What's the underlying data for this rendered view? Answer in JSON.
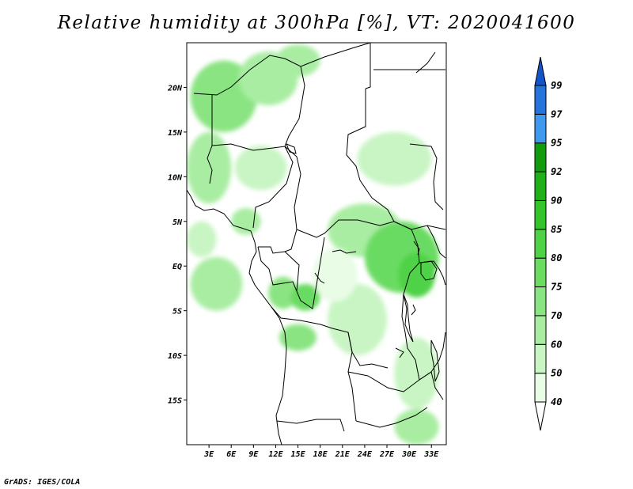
{
  "title": "Relative humidity at 300hPa [%], VT: 2020041600",
  "credit": "GrADS: IGES/COLA",
  "map": {
    "region": "Central Africa",
    "lon_range": [
      0,
      35
    ],
    "lat_range": [
      -20,
      25
    ],
    "x_ticks": [
      {
        "lon": 3,
        "label": "3E"
      },
      {
        "lon": 6,
        "label": "6E"
      },
      {
        "lon": 9,
        "label": "9E"
      },
      {
        "lon": 12,
        "label": "12E"
      },
      {
        "lon": 15,
        "label": "15E"
      },
      {
        "lon": 18,
        "label": "18E"
      },
      {
        "lon": 21,
        "label": "21E"
      },
      {
        "lon": 24,
        "label": "24E"
      },
      {
        "lon": 27,
        "label": "27E"
      },
      {
        "lon": 30,
        "label": "30E"
      },
      {
        "lon": 33,
        "label": "33E"
      }
    ],
    "y_ticks": [
      {
        "lat": 20,
        "label": "20N"
      },
      {
        "lat": 15,
        "label": "15N"
      },
      {
        "lat": 10,
        "label": "10N"
      },
      {
        "lat": 5,
        "label": "5N"
      },
      {
        "lat": 0,
        "label": "EQ"
      },
      {
        "lat": -5,
        "label": "5S"
      },
      {
        "lat": -10,
        "label": "10S"
      },
      {
        "lat": -15,
        "label": "15S"
      }
    ]
  },
  "chart_data": {
    "type": "heatmap",
    "title": "Relative humidity at 300hPa [%], VT: 2020041600",
    "xlabel": "",
    "ylabel": "",
    "x_range": [
      0,
      35
    ],
    "y_range": [
      -20,
      25
    ],
    "colorbar": {
      "levels": [
        "40",
        "50",
        "60",
        "70",
        "75",
        "80",
        "85",
        "90",
        "92",
        "95",
        "97",
        "99"
      ],
      "colors": [
        "#e8fce6",
        "#c8f5c3",
        "#a9eda2",
        "#8ae482",
        "#6bdb62",
        "#4fd246",
        "#33c52b",
        "#20b01a",
        "#119b0d",
        "#3f9aef",
        "#2573dd",
        "#1155c8"
      ],
      "below_color": "#ffffff",
      "above_color": "#1155c8"
    },
    "regions": [
      {
        "lon": 5,
        "lat": 19,
        "rx": 4.5,
        "ry": 4,
        "level": "70"
      },
      {
        "lon": 11,
        "lat": 21,
        "rx": 4,
        "ry": 3,
        "level": "60"
      },
      {
        "lon": 15,
        "lat": 23,
        "rx": 3,
        "ry": 1.8,
        "level": "60"
      },
      {
        "lon": 3,
        "lat": 11,
        "rx": 3,
        "ry": 4,
        "level": "60"
      },
      {
        "lon": 10,
        "lat": 11,
        "rx": 3.5,
        "ry": 2.5,
        "level": "50"
      },
      {
        "lon": 28,
        "lat": 12,
        "rx": 5,
        "ry": 3,
        "level": "50"
      },
      {
        "lon": 24,
        "lat": 4,
        "rx": 5,
        "ry": 3,
        "level": "60"
      },
      {
        "lon": 29,
        "lat": 1,
        "rx": 5,
        "ry": 4,
        "level": "75"
      },
      {
        "lon": 31,
        "lat": -1,
        "rx": 2.5,
        "ry": 2.5,
        "level": "80"
      },
      {
        "lon": 4,
        "lat": -2,
        "rx": 3.5,
        "ry": 3,
        "level": "60"
      },
      {
        "lon": 13,
        "lat": -3,
        "rx": 2,
        "ry": 1.8,
        "level": "70"
      },
      {
        "lon": 16,
        "lat": -3.5,
        "rx": 2,
        "ry": 1.5,
        "level": "75"
      },
      {
        "lon": 15,
        "lat": -8,
        "rx": 2.5,
        "ry": 1.5,
        "level": "70"
      },
      {
        "lon": 23,
        "lat": -6,
        "rx": 4,
        "ry": 4,
        "level": "50"
      },
      {
        "lon": 31,
        "lat": -12,
        "rx": 3,
        "ry": 4,
        "level": "50"
      },
      {
        "lon": 31,
        "lat": -18,
        "rx": 3,
        "ry": 2,
        "level": "60"
      },
      {
        "lon": 2,
        "lat": 3,
        "rx": 2,
        "ry": 2,
        "level": "50"
      },
      {
        "lon": 20,
        "lat": -1,
        "rx": 3,
        "ry": 3,
        "level": "40"
      },
      {
        "lon": 8,
        "lat": 5,
        "rx": 2,
        "ry": 1.5,
        "level": "60"
      }
    ]
  }
}
